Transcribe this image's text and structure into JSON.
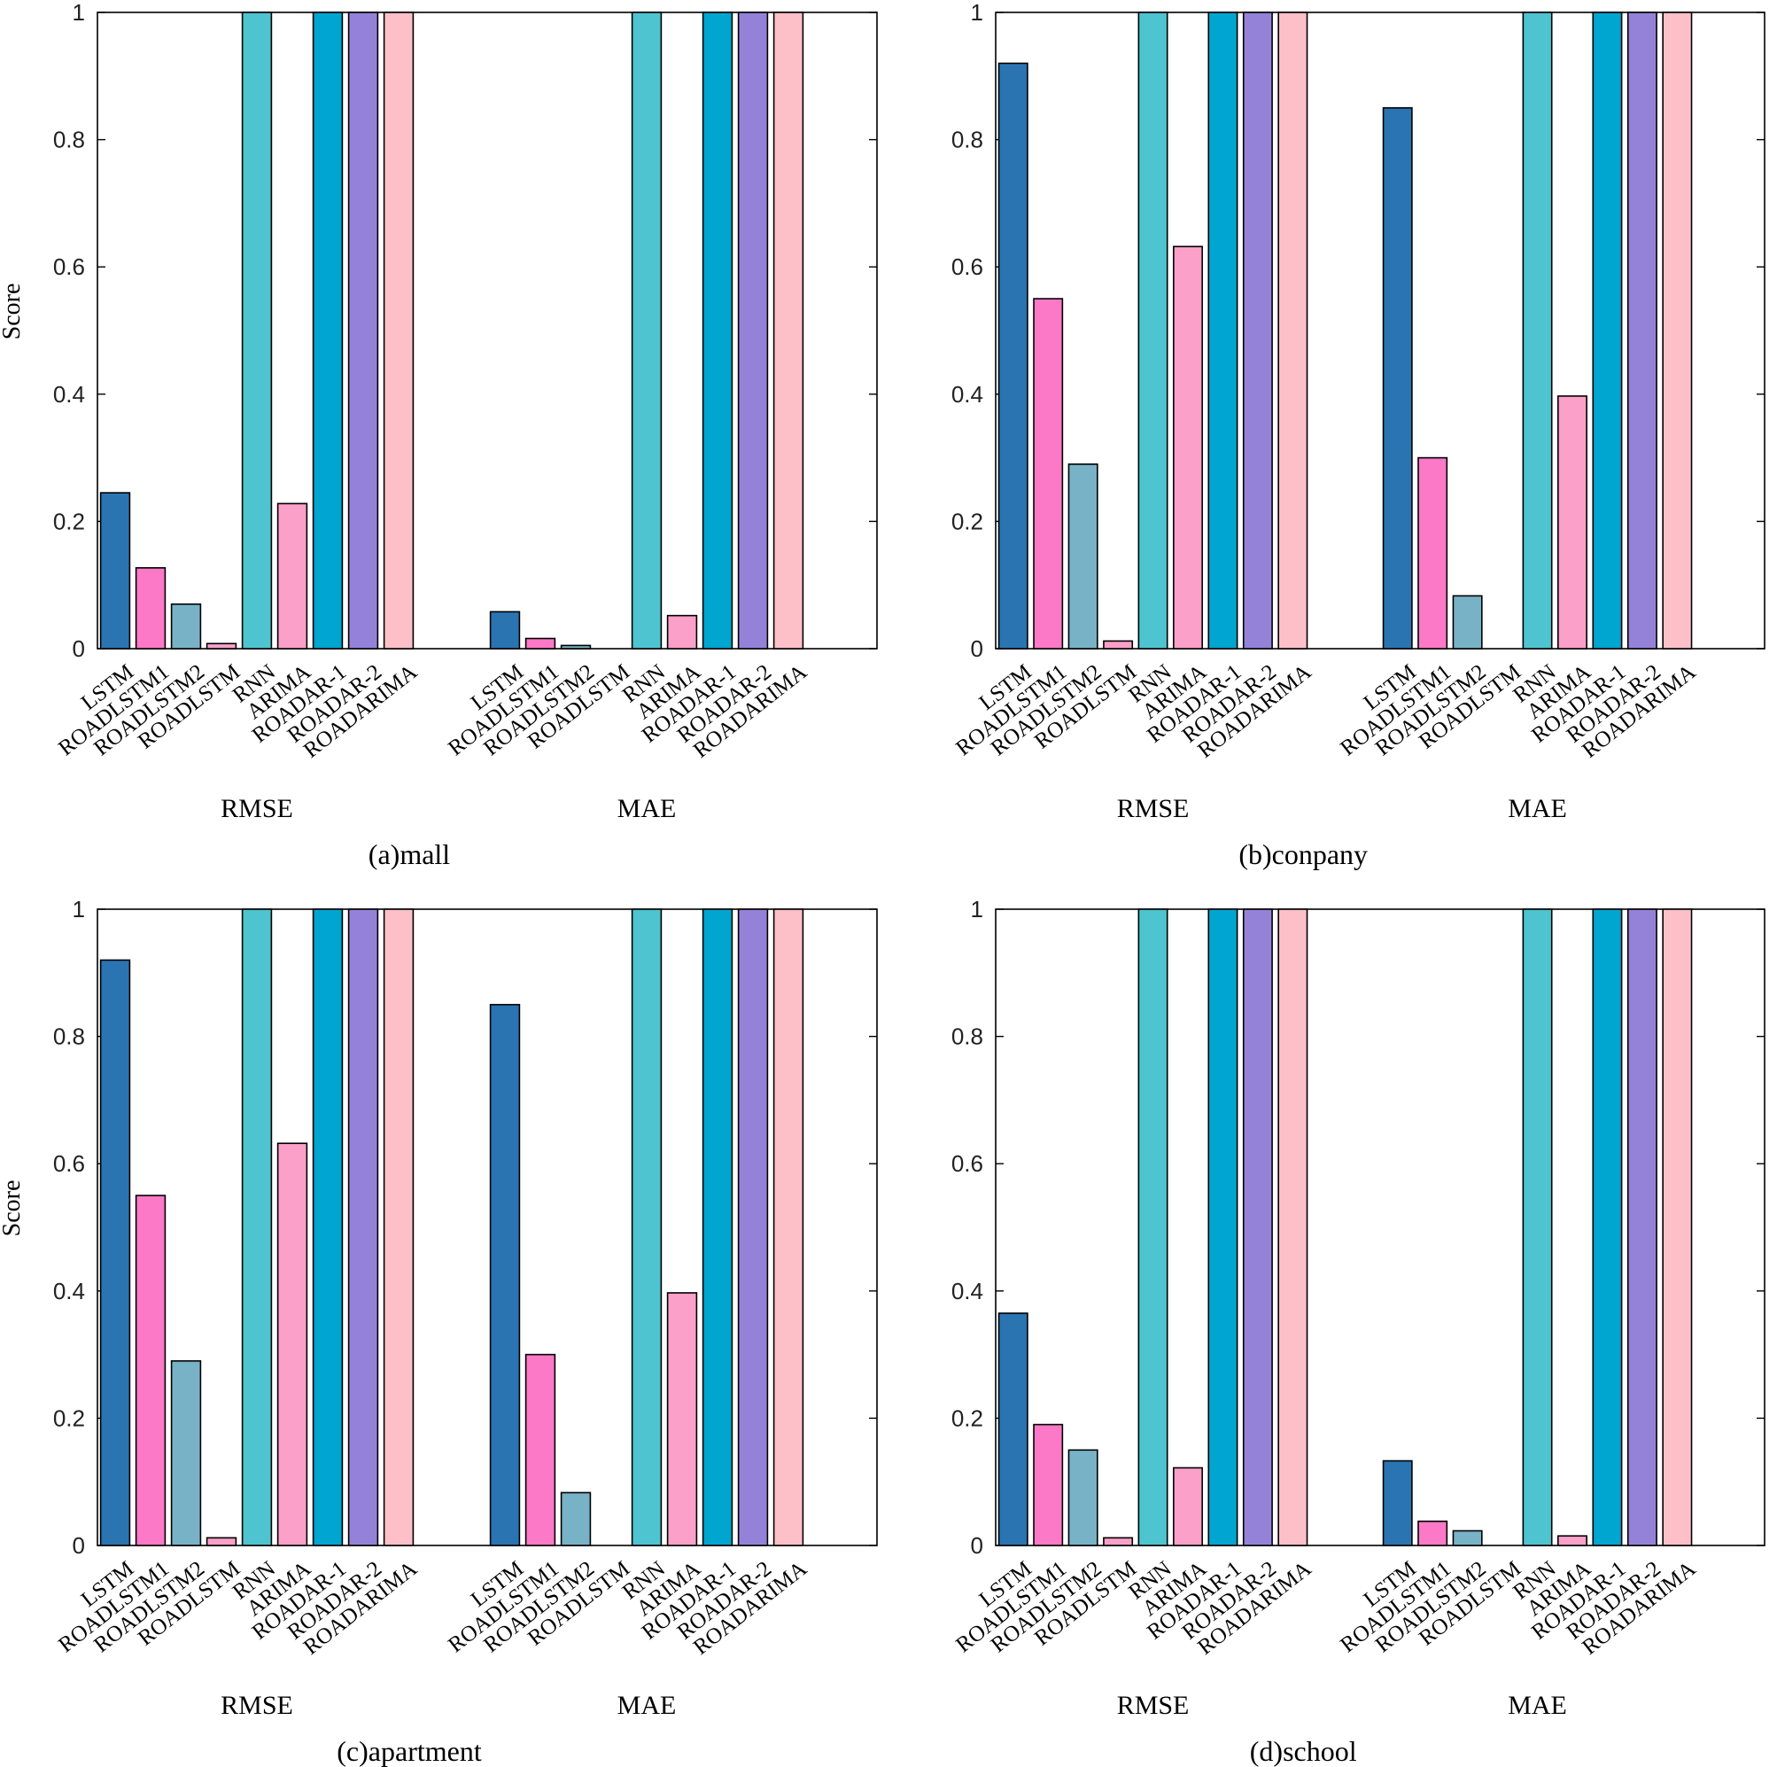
{
  "colors": [
    "#2a74b2",
    "#fb79c6",
    "#78b2c6",
    "#f9a0c8",
    "#4dc4d0",
    "#fba0c8",
    "#00a5d0",
    "#9482d8",
    "#fdc0c8"
  ],
  "chart_data": [
    {
      "type": "bar",
      "caption": "(a)mall",
      "ylabel": "Score",
      "ylim": [
        0,
        1
      ],
      "yticks": [
        "0",
        "0.2",
        "0.4",
        "0.6",
        "0.8",
        "1"
      ],
      "groups": [
        "RMSE",
        "MAE"
      ],
      "categories": [
        "LSTM",
        "ROADLSTM1",
        "ROADLSTM2",
        "ROADLSTM",
        "RNN",
        "ARIMA",
        "ROADAR-1",
        "ROADAR-2",
        "ROADARIMA"
      ],
      "series": [
        {
          "values": [
            0.245,
            0.127,
            0.07,
            0.008,
            1.0,
            0.228,
            1.0,
            1.0,
            1.0
          ]
        },
        {
          "values": [
            0.058,
            0.016,
            0.005,
            0.0,
            1.0,
            0.052,
            1.0,
            1.0,
            1.0
          ]
        }
      ]
    },
    {
      "type": "bar",
      "caption": "(b)conpany",
      "ylabel": "",
      "ylim": [
        0,
        1
      ],
      "yticks": [
        "0",
        "0.2",
        "0.4",
        "0.6",
        "0.8",
        "1"
      ],
      "groups": [
        "RMSE",
        "MAE"
      ],
      "categories": [
        "LSTM",
        "ROADLSTM1",
        "ROADLSTM2",
        "ROADLSTM",
        "RNN",
        "ARIMA",
        "ROADAR-1",
        "ROADAR-2",
        "ROADARIMA"
      ],
      "series": [
        {
          "values": [
            0.92,
            0.55,
            0.29,
            0.012,
            1.0,
            0.632,
            1.0,
            1.0,
            1.0
          ]
        },
        {
          "values": [
            0.85,
            0.3,
            0.083,
            0.0,
            1.0,
            0.397,
            1.0,
            1.0,
            1.0
          ]
        }
      ]
    },
    {
      "type": "bar",
      "caption": "(c)apartment",
      "ylabel": "Score",
      "ylim": [
        0,
        1
      ],
      "yticks": [
        "0",
        "0.2",
        "0.4",
        "0.6",
        "0.8",
        "1"
      ],
      "groups": [
        "RMSE",
        "MAE"
      ],
      "categories": [
        "LSTM",
        "ROADLSTM1",
        "ROADLSTM2",
        "ROADLSTM",
        "RNN",
        "ARIMA",
        "ROADAR-1",
        "ROADAR-2",
        "ROADARIMA"
      ],
      "series": [
        {
          "values": [
            0.92,
            0.55,
            0.29,
            0.012,
            1.0,
            0.632,
            1.0,
            1.0,
            1.0
          ]
        },
        {
          "values": [
            0.85,
            0.3,
            0.083,
            0.0,
            1.0,
            0.397,
            1.0,
            1.0,
            1.0
          ]
        }
      ]
    },
    {
      "type": "bar",
      "caption": "(d)school",
      "ylabel": "",
      "ylim": [
        0,
        1
      ],
      "yticks": [
        "0",
        "0.2",
        "0.4",
        "0.6",
        "0.8",
        "1"
      ],
      "groups": [
        "RMSE",
        "MAE"
      ],
      "categories": [
        "LSTM",
        "ROADLSTM1",
        "ROADLSTM2",
        "ROADLSTM",
        "RNN",
        "ARIMA",
        "ROADAR-1",
        "ROADAR-2",
        "ROADARIMA"
      ],
      "series": [
        {
          "values": [
            0.365,
            0.19,
            0.15,
            0.012,
            1.0,
            0.122,
            1.0,
            1.0,
            1.0
          ]
        },
        {
          "values": [
            0.133,
            0.038,
            0.023,
            0.0,
            1.0,
            0.015,
            1.0,
            1.0,
            1.0
          ]
        }
      ]
    }
  ]
}
